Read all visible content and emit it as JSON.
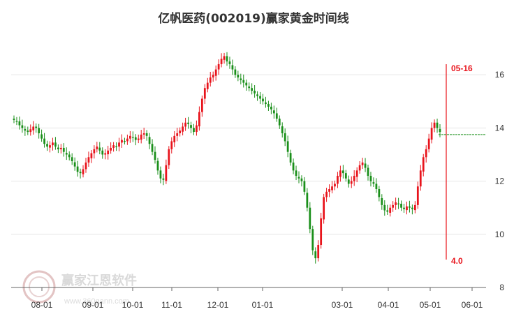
{
  "chart_data": {
    "type": "candlestick",
    "title": "亿帆医药(002019)赢家黄金时间线",
    "y_ticks": [
      8,
      10,
      12,
      14,
      16
    ],
    "ylim": [
      8,
      17.5
    ],
    "x_labels": [
      "08-01",
      "09-01",
      "10-01",
      "11-01",
      "12-01",
      "01-01",
      "03-01",
      "04-01",
      "05-01",
      "06-01"
    ],
    "colors": {
      "up": "#e8141c",
      "down": "#1a8f1a",
      "marker": "#e8141c",
      "reference": "#1a8f1a",
      "grid": "#e6e6e6"
    },
    "annotations": {
      "date_label": "05-16",
      "count_label": "4.0",
      "reference_price": 13.75
    },
    "series_close": [
      14.3,
      14.25,
      14.1,
      14.0,
      13.9,
      13.85,
      13.95,
      14.05,
      14.0,
      13.8,
      13.6,
      13.4,
      13.3,
      13.35,
      13.45,
      13.3,
      13.2,
      13.25,
      13.1,
      13.0,
      12.9,
      12.75,
      12.55,
      12.35,
      12.3,
      12.45,
      12.7,
      12.9,
      13.05,
      13.2,
      13.3,
      13.15,
      13.0,
      13.05,
      13.15,
      13.25,
      13.35,
      13.3,
      13.45,
      13.55,
      13.5,
      13.6,
      13.7,
      13.65,
      13.55,
      13.6,
      13.75,
      13.8,
      13.7,
      13.4,
      13.1,
      12.8,
      12.4,
      12.1,
      12.05,
      12.6,
      13.2,
      13.5,
      13.7,
      13.8,
      13.9,
      14.05,
      14.2,
      14.15,
      14.0,
      13.85,
      14.1,
      14.6,
      15.1,
      15.5,
      15.7,
      15.9,
      16.0,
      16.2,
      16.4,
      16.6,
      16.7,
      16.5,
      16.4,
      16.2,
      16.0,
      15.9,
      15.8,
      15.7,
      15.6,
      15.5,
      15.4,
      15.3,
      15.2,
      15.1,
      15.0,
      14.9,
      14.8,
      14.7,
      14.55,
      14.35,
      14.1,
      13.8,
      13.5,
      13.1,
      12.7,
      12.4,
      12.2,
      12.1,
      12.0,
      11.6,
      11.0,
      10.2,
      9.4,
      9.1,
      9.6,
      10.6,
      11.4,
      11.6,
      11.7,
      11.8,
      11.9,
      12.2,
      12.4,
      12.3,
      12.1,
      11.9,
      12.0,
      12.2,
      12.4,
      12.6,
      12.7,
      12.5,
      12.2,
      12.0,
      11.9,
      11.7,
      11.4,
      11.1,
      10.9,
      10.85,
      11.0,
      11.1,
      11.2,
      11.15,
      11.0,
      10.95,
      11.05,
      11.0,
      10.95,
      11.1,
      11.8,
      12.4,
      12.9,
      13.2,
      13.6,
      14.0,
      14.2,
      14.0,
      13.85
    ]
  },
  "watermark": {
    "text": "赢家江恩软件",
    "url": "www.360gann.com"
  }
}
